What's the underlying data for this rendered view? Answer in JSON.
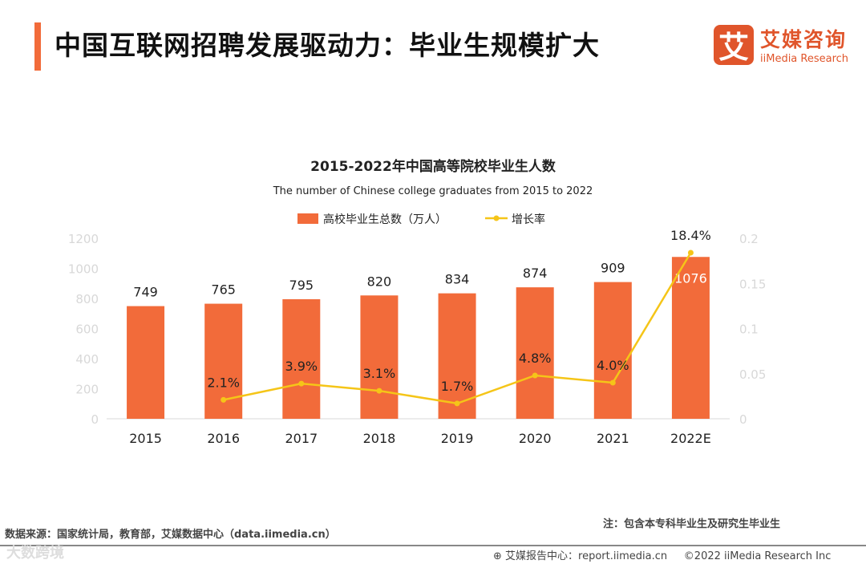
{
  "header": {
    "title": "中国互联网招聘发展驱动力：毕业生规模扩大"
  },
  "logo": {
    "mark": "艾",
    "cn": "艾媒咨询",
    "en": "iiMedia Research"
  },
  "chart_data": {
    "type": "bar+line",
    "title": "2015-2022年中国高等院校毕业生人数",
    "subtitle": "The number of Chinese college graduates from 2015 to 2022",
    "categories": [
      "2015",
      "2016",
      "2017",
      "2018",
      "2019",
      "2020",
      "2021",
      "2022E"
    ],
    "series": [
      {
        "name": "高校毕业生总数（万人）",
        "type": "bar",
        "axis": "left",
        "color": "#f26b3a",
        "values": [
          749,
          765,
          795,
          820,
          834,
          874,
          909,
          1076
        ]
      },
      {
        "name": "增长率",
        "type": "line",
        "axis": "right",
        "color": "#f5c518",
        "values": [
          null,
          0.021,
          0.039,
          0.031,
          0.017,
          0.048,
          0.04,
          0.184
        ],
        "labels": [
          "",
          "2.1%",
          "3.9%",
          "3.1%",
          "1.7%",
          "4.8%",
          "4.0%",
          "18.4%"
        ]
      }
    ],
    "yleft": {
      "ylim": [
        0,
        1200
      ],
      "ticks": [
        "0",
        "200",
        "400",
        "600",
        "800",
        "1000",
        "1200"
      ]
    },
    "yright": {
      "ylim": [
        0,
        0.2
      ],
      "ticks": [
        "0",
        "0.05",
        "0.1",
        "0.15",
        "0.2"
      ]
    },
    "legend": "top-center"
  },
  "footer": {
    "source": "数据来源：国家统计局，教育部，艾媒数据中心（data.iimedia.cn）",
    "note": "注：包含本专科毕业生及研究生毕业生",
    "report": "艾媒报告中心：report.iimedia.cn",
    "copyright": "©2022  iiMedia Research  Inc",
    "watermark": "大数跨境"
  }
}
